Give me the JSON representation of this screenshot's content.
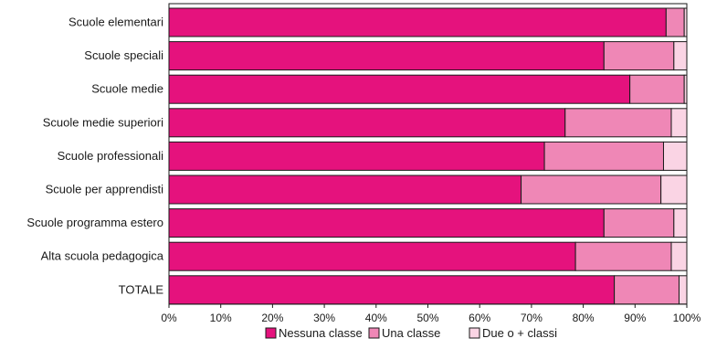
{
  "chart_data": {
    "type": "bar",
    "orientation": "horizontal",
    "stacked": true,
    "categories": [
      "Scuole elementari",
      "Scuole speciali",
      "Scuole medie",
      "Scuole medie superiori",
      "Scuole professionali",
      "Scuole per apprendisti",
      "Scuole programma estero",
      "Alta scuola pedagogica",
      "TOTALE"
    ],
    "series": [
      {
        "name": "Nessuna classe",
        "color": "#e5127d",
        "values": [
          96,
          84,
          89,
          76.5,
          72.5,
          68,
          84,
          78.5,
          86
        ]
      },
      {
        "name": "Una classe",
        "color": "#ef87b6",
        "values": [
          3.5,
          13.5,
          10.5,
          20.5,
          23,
          27,
          13.5,
          18.5,
          12.5
        ]
      },
      {
        "name": "Due o + classi",
        "color": "#fad4e4",
        "values": [
          0.5,
          2.5,
          0.5,
          3,
          4.5,
          5,
          2.5,
          3,
          1.5
        ]
      }
    ],
    "xlim": [
      0,
      100
    ],
    "xticks": [
      "0%",
      "10%",
      "20%",
      "30%",
      "40%",
      "50%",
      "60%",
      "70%",
      "80%",
      "90%",
      "100%"
    ],
    "legend_position": "bottom",
    "grid": false
  }
}
